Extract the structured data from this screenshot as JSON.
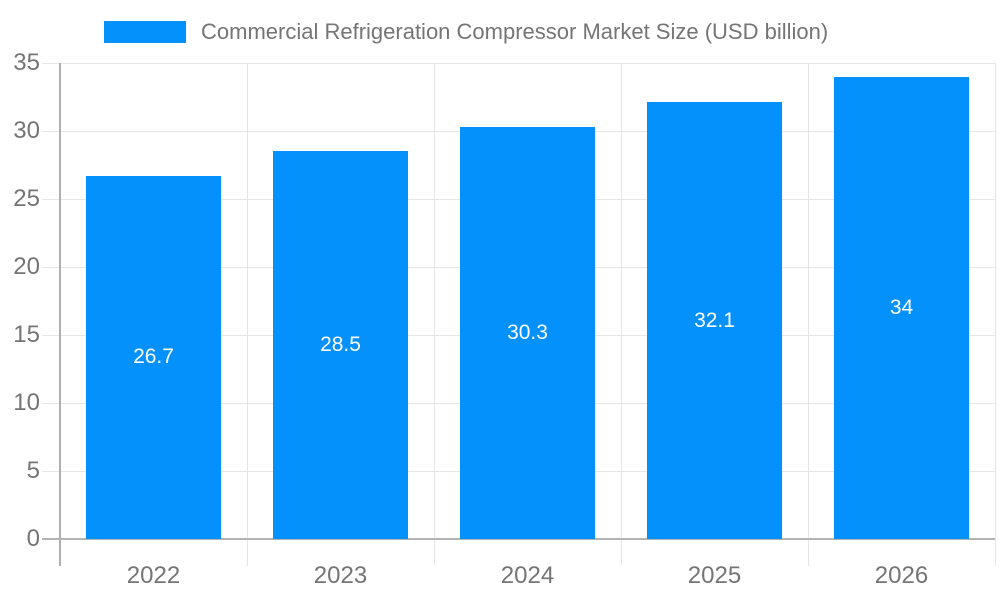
{
  "chart_data": {
    "type": "bar",
    "title": "Commercial Refrigeration Compressor Market Size (USD billion)",
    "categories": [
      "2022",
      "2023",
      "2024",
      "2025",
      "2026"
    ],
    "values": [
      26.7,
      28.5,
      30.3,
      32.1,
      34
    ],
    "value_labels": [
      "26.7",
      "28.5",
      "30.3",
      "32.1",
      "34"
    ],
    "xlabel": "",
    "ylabel": "",
    "ylim": [
      0,
      35
    ],
    "yticks": [
      0,
      5,
      10,
      15,
      20,
      25,
      30,
      35
    ],
    "grid": true,
    "legend_position": "top",
    "colors": {
      "bar": "#0591fb",
      "axis_text": "#757575",
      "grid_line": "#e6e6e6",
      "axis_line": "#b0b0b0",
      "bar_label": "#ffffff",
      "background": "#ffffff"
    }
  }
}
